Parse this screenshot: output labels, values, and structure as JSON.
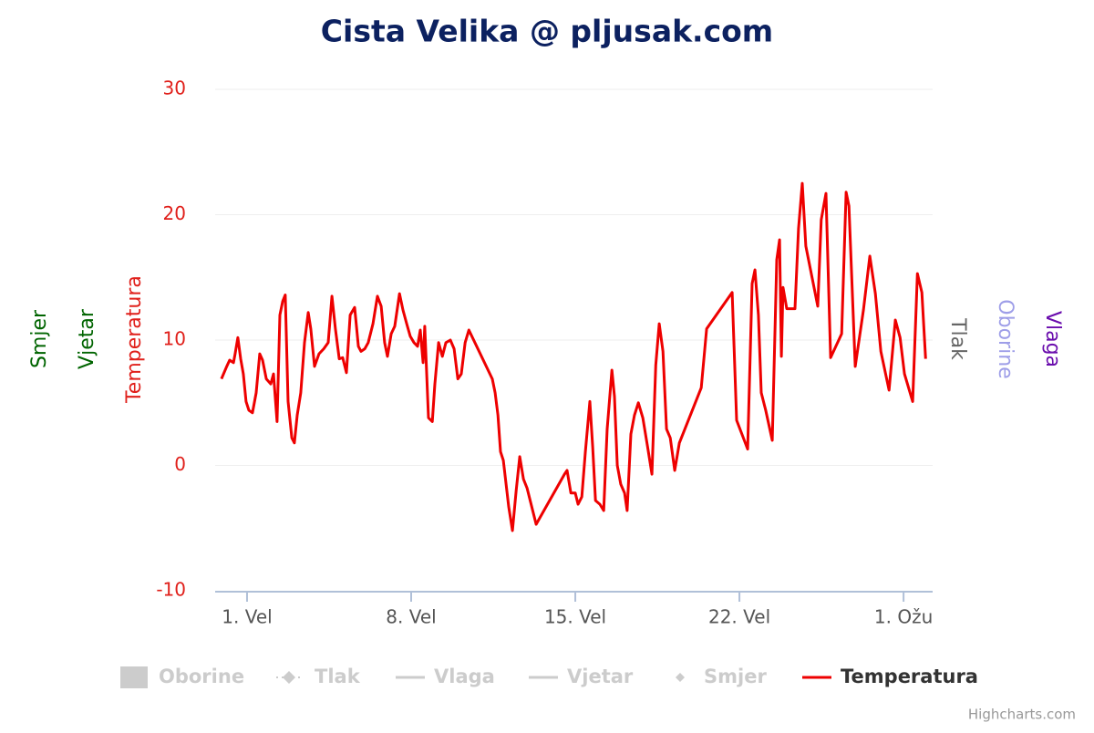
{
  "chart_data": {
    "type": "line",
    "title": "Cista Velika @ pljusak.com",
    "credits": "Highcharts.com",
    "left_axis_titles": [
      {
        "text": "Smjer",
        "color": "#006400"
      },
      {
        "text": "Vjetar",
        "color": "#006400"
      },
      {
        "text": "Temperatura",
        "color": "#e0201b"
      }
    ],
    "right_axis_titles": [
      {
        "text": "Tlak",
        "color": "#666666"
      },
      {
        "text": "Oborine",
        "color": "#9e9ee8"
      },
      {
        "text": "Vlaga",
        "color": "#6a0dad"
      }
    ],
    "xlim": [
      -0.36,
      30.24
    ],
    "xticks": [
      {
        "value": 1,
        "label": "1. Vel"
      },
      {
        "value": 8,
        "label": "8. Vel"
      },
      {
        "value": 15,
        "label": "15. Vel"
      },
      {
        "value": 22,
        "label": "22. Vel"
      },
      {
        "value": 29,
        "label": "1. Ožu"
      }
    ],
    "ylim": [
      -10,
      30
    ],
    "yticks": [
      -10,
      0,
      10,
      20,
      30
    ],
    "grid": true,
    "x": [
      -0.09,
      0.11,
      0.26,
      0.42,
      0.49,
      0.61,
      0.73,
      0.84,
      0.96,
      1.08,
      1.23,
      1.39,
      1.54,
      1.66,
      1.82,
      2.01,
      2.13,
      2.28,
      2.4,
      2.52,
      2.63,
      2.75,
      2.91,
      3.02,
      3.14,
      3.29,
      3.45,
      3.61,
      3.72,
      3.88,
      4.07,
      4.27,
      4.46,
      4.62,
      4.77,
      4.93,
      5.08,
      5.24,
      5.4,
      5.59,
      5.75,
      5.86,
      6.02,
      6.17,
      6.37,
      6.56,
      6.72,
      6.87,
      6.99,
      7.15,
      7.3,
      7.5,
      7.65,
      7.81,
      7.96,
      8.12,
      8.27,
      8.39,
      8.51,
      8.58,
      8.74,
      8.9,
      9.01,
      9.17,
      9.33,
      9.48,
      9.67,
      9.83,
      9.99,
      10.14,
      10.3,
      10.46,
      11.46,
      11.58,
      11.7,
      11.81,
      11.93,
      12.16,
      12.32,
      12.48,
      12.63,
      12.79,
      12.94,
      13.33,
      14.54,
      14.65,
      14.81,
      15.0,
      15.12,
      15.28,
      15.43,
      15.62,
      15.74,
      15.86,
      16.05,
      16.21,
      16.36,
      16.56,
      16.67,
      16.79,
      16.94,
      17.1,
      17.21,
      17.37,
      17.52,
      17.69,
      17.88,
      18.08,
      18.27,
      18.43,
      18.58,
      18.74,
      18.89,
      19.05,
      19.24,
      19.44,
      20.37,
      20.6,
      21.69,
      21.88,
      22.35,
      22.54,
      22.66,
      22.81,
      22.93,
      23.12,
      23.4,
      23.59,
      23.71,
      23.79,
      23.86,
      24.02,
      24.37,
      24.52,
      24.68,
      24.83,
      25.34,
      25.49,
      25.69,
      25.89,
      26.36,
      26.55,
      26.67,
      26.94,
      27.29,
      27.56,
      27.8,
      28.03,
      28.38,
      28.65,
      28.85,
      29.04,
      29.39,
      29.59,
      29.78,
      29.94
    ],
    "series": [
      {
        "name": "Oborine",
        "color": "#cccccc",
        "visible": false,
        "legend_symbol": "column"
      },
      {
        "name": "Tlak",
        "color": "#cccccc",
        "visible": false,
        "legend_symbol": "dashed-marker"
      },
      {
        "name": "Vlaga",
        "color": "#cccccc",
        "visible": false,
        "legend_symbol": "line"
      },
      {
        "name": "Vjetar",
        "color": "#cccccc",
        "visible": false,
        "legend_symbol": "line"
      },
      {
        "name": "Smjer",
        "color": "#cccccc",
        "visible": false,
        "legend_symbol": "marker"
      },
      {
        "name": "Temperatura",
        "color": "#ee0000",
        "visible": true,
        "legend_symbol": "line",
        "values": [
          6.9,
          7.8,
          8.4,
          8.2,
          8.9,
          10.2,
          8.5,
          7.3,
          5.1,
          4.4,
          4.2,
          5.8,
          8.9,
          8.4,
          6.9,
          6.5,
          7.3,
          3.5,
          12.0,
          13.1,
          13.6,
          5.1,
          2.2,
          1.8,
          4.0,
          5.8,
          9.8,
          12.2,
          10.9,
          7.9,
          8.9,
          9.3,
          9.8,
          13.5,
          10.9,
          8.5,
          8.6,
          7.4,
          12.0,
          12.6,
          9.5,
          9.1,
          9.3,
          9.8,
          11.3,
          13.5,
          12.7,
          9.8,
          8.7,
          10.5,
          11.1,
          13.7,
          12.4,
          11.3,
          10.3,
          9.8,
          9.5,
          10.8,
          8.2,
          11.1,
          3.8,
          3.5,
          6.5,
          9.8,
          8.7,
          9.8,
          10.0,
          9.3,
          6.9,
          7.3,
          9.8,
          10.8,
          6.9,
          5.8,
          4.0,
          1.1,
          0.4,
          -3.3,
          -5.2,
          -2.0,
          0.7,
          -1.1,
          -1.8,
          -4.7,
          -0.7,
          -0.4,
          -2.2,
          -2.2,
          -3.1,
          -2.5,
          1.1,
          5.1,
          1.5,
          -2.8,
          -3.1,
          -3.6,
          2.9,
          7.6,
          5.5,
          0.0,
          -1.5,
          -2.2,
          -3.6,
          2.5,
          4.0,
          5.0,
          3.8,
          1.5,
          -0.7,
          8.0,
          11.3,
          9.1,
          2.9,
          2.2,
          -0.4,
          1.8,
          6.2,
          10.9,
          13.8,
          3.6,
          1.3,
          14.5,
          15.6,
          12.0,
          5.8,
          4.4,
          2.0,
          16.4,
          18.0,
          8.7,
          14.2,
          12.5,
          12.5,
          18.9,
          22.5,
          17.5,
          12.7,
          19.6,
          21.7,
          8.6,
          10.5,
          21.8,
          20.7,
          7.9,
          12.4,
          16.7,
          13.7,
          9.1,
          6.0,
          11.6,
          10.2,
          7.3,
          5.1,
          15.3,
          13.8,
          8.5
        ]
      }
    ]
  }
}
